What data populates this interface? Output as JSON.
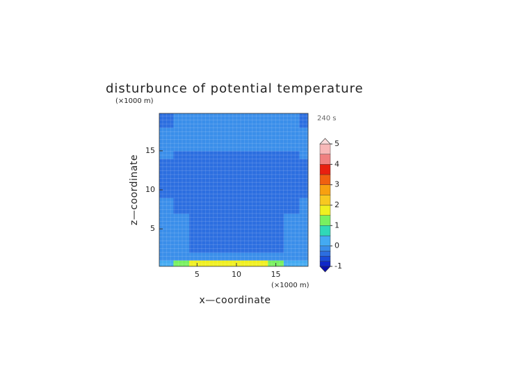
{
  "chart_data": {
    "type": "contourf",
    "title": "disturbunce of potential temperature",
    "xlabel": "x—coordinate",
    "ylabel": "z—coordinate",
    "x_unit": "(×1000 m)",
    "y_unit": "(×1000 m)",
    "time_label": "240 s",
    "x": [
      1,
      3,
      5,
      7,
      9,
      11,
      13,
      15,
      17,
      19
    ],
    "y": [
      0.5,
      1.5,
      2.5,
      3.5,
      4.5,
      5.5,
      6.5,
      7.5,
      8.5,
      9.5,
      10.5,
      11.5,
      12.5,
      13.5,
      14.5,
      15.5,
      16.5,
      17.5,
      18.5,
      19.5
    ],
    "z": [
      [
        0.3,
        1.2,
        1.7,
        1.9,
        1.9,
        1.9,
        1.8,
        1.3,
        0.4,
        0.1
      ],
      [
        -0.2,
        -0.2,
        -0.2,
        -0.2,
        -0.2,
        -0.2,
        -0.2,
        -0.2,
        -0.2,
        -0.2
      ],
      [
        -0.2,
        -0.2,
        -0.3,
        -0.3,
        -0.3,
        -0.3,
        -0.3,
        -0.3,
        -0.2,
        -0.2
      ],
      [
        -0.2,
        -0.2,
        -0.3,
        -0.3,
        -0.3,
        -0.3,
        -0.3,
        -0.3,
        -0.2,
        -0.2
      ],
      [
        -0.2,
        -0.2,
        -0.3,
        -0.3,
        -0.3,
        -0.3,
        -0.3,
        -0.3,
        -0.2,
        -0.2
      ],
      [
        -0.2,
        -0.2,
        -0.3,
        -0.3,
        -0.3,
        -0.3,
        -0.3,
        -0.3,
        -0.2,
        -0.2
      ],
      [
        -0.2,
        -0.2,
        -0.3,
        -0.3,
        -0.3,
        -0.3,
        -0.3,
        -0.3,
        -0.2,
        -0.2
      ],
      [
        -0.2,
        -0.3,
        -0.3,
        -0.3,
        -0.3,
        -0.3,
        -0.3,
        -0.3,
        -0.3,
        -0.2
      ],
      [
        -0.2,
        -0.3,
        -0.3,
        -0.3,
        -0.3,
        -0.3,
        -0.3,
        -0.3,
        -0.3,
        -0.2
      ],
      [
        -0.3,
        -0.3,
        -0.3,
        -0.3,
        -0.3,
        -0.3,
        -0.3,
        -0.3,
        -0.3,
        -0.3
      ],
      [
        -0.3,
        -0.3,
        -0.3,
        -0.3,
        -0.3,
        -0.3,
        -0.3,
        -0.3,
        -0.3,
        -0.3
      ],
      [
        -0.3,
        -0.3,
        -0.3,
        -0.3,
        -0.3,
        -0.3,
        -0.3,
        -0.3,
        -0.3,
        -0.3
      ],
      [
        -0.3,
        -0.3,
        -0.3,
        -0.3,
        -0.3,
        -0.3,
        -0.3,
        -0.3,
        -0.3,
        -0.3
      ],
      [
        -0.3,
        -0.3,
        -0.3,
        -0.3,
        -0.3,
        -0.3,
        -0.3,
        -0.3,
        -0.3,
        -0.3
      ],
      [
        -0.2,
        -0.3,
        -0.3,
        -0.3,
        -0.3,
        -0.3,
        -0.3,
        -0.3,
        -0.3,
        -0.2
      ],
      [
        -0.2,
        -0.2,
        -0.2,
        -0.2,
        -0.2,
        -0.2,
        -0.2,
        -0.2,
        -0.2,
        -0.2
      ],
      [
        -0.2,
        -0.2,
        -0.2,
        -0.2,
        -0.2,
        -0.2,
        -0.2,
        -0.2,
        -0.2,
        -0.2
      ],
      [
        -0.2,
        -0.2,
        -0.2,
        -0.2,
        -0.2,
        -0.2,
        -0.2,
        -0.2,
        -0.2,
        -0.2
      ],
      [
        -0.3,
        -0.2,
        -0.2,
        -0.2,
        -0.2,
        -0.2,
        -0.2,
        -0.2,
        -0.2,
        -0.3
      ],
      [
        -0.3,
        -0.2,
        -0.2,
        -0.2,
        -0.2,
        -0.2,
        -0.2,
        -0.2,
        -0.2,
        -0.3
      ]
    ],
    "xlim": [
      0.2,
      19.1
    ],
    "ylim": [
      0.2,
      19.8
    ],
    "xticks": [
      5,
      10,
      15
    ],
    "yticks": [
      5,
      10,
      15
    ],
    "colorbar": {
      "levels": [
        -1,
        -0.75,
        -0.5,
        -0.25,
        0,
        0.5,
        1,
        1.5,
        2,
        2.5,
        3,
        3.5,
        4,
        4.5,
        5
      ],
      "colors": [
        "#1028c8",
        "#1a4cd8",
        "#2c6ee0",
        "#3a8eea",
        "#44aaf2",
        "#30d8b8",
        "#78f060",
        "#f0f020",
        "#f8c820",
        "#f8a010",
        "#f06010",
        "#e82010",
        "#f08080",
        "#f8b8b8"
      ],
      "under_color": "#0a10b0",
      "over_color": "#fcdcdc",
      "ticks": [
        -1,
        0,
        1,
        2,
        3,
        4,
        5
      ]
    }
  }
}
